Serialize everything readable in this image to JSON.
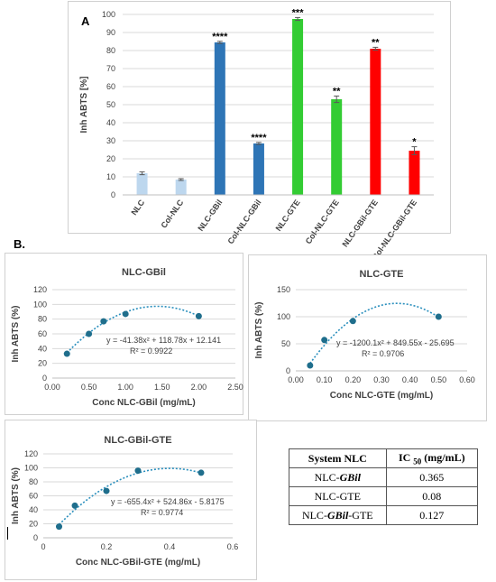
{
  "labels": {
    "panel_a": "A",
    "panel_b": "B."
  },
  "chart_data": [
    {
      "id": "A",
      "type": "bar",
      "ylabel": "Inh ABTS [%]",
      "ylim": [
        0,
        100
      ],
      "yticks": [
        "0",
        "10",
        "20",
        "30",
        "40",
        "50",
        "60",
        "70",
        "80",
        "90",
        "100"
      ],
      "categories": [
        "NLC",
        "Col-NLC",
        "NLC-GBil",
        "Col-NLC-GBil",
        "NLC-GTE",
        "Col-NLC-GTE",
        "NLC-GBil-GTE",
        "Col-NLC-GBil-GTE"
      ],
      "values": [
        12,
        8.5,
        84.5,
        28.5,
        97.5,
        53,
        81,
        24.5
      ],
      "errors": [
        0.8,
        0.5,
        0.6,
        0.6,
        0.8,
        1.8,
        0.8,
        2.2
      ],
      "significance": [
        "",
        "",
        "****",
        "****",
        "***",
        "**",
        "**",
        "*"
      ],
      "colors": [
        "#bdd7ee",
        "#bdd7ee",
        "#2e75b6",
        "#2e75b6",
        "#33cc33",
        "#33cc33",
        "#ff0000",
        "#ff0000"
      ],
      "grid": true
    },
    {
      "id": "NLC-GBil",
      "type": "scatter",
      "title": "NLC-GBil",
      "xlabel": "Conc NLC-GBil (mg/mL)",
      "ylabel": "Inh ABTS (%)",
      "xlim": [
        0,
        2.5
      ],
      "ylim": [
        0,
        120
      ],
      "xticks": [
        "0.00",
        "0.50",
        "1.00",
        "1.50",
        "2.00",
        "2.50"
      ],
      "yticks": [
        "0",
        "20",
        "40",
        "60",
        "80",
        "100",
        "120"
      ],
      "x": [
        0.2,
        0.5,
        0.7,
        1.0,
        2.0
      ],
      "y": [
        33,
        60,
        77,
        87,
        84
      ],
      "trend": {
        "a": -41.38,
        "b": 118.78,
        "c": 12.141
      },
      "equation": "y = -41.38x² + 118.78x + 12.141",
      "r2": "R² = 0.9922",
      "grid": true
    },
    {
      "id": "NLC-GTE",
      "type": "scatter",
      "title": "NLC-GTE",
      "xlabel": "Conc NLC-GTE (mg/mL)",
      "ylabel": "Inh ABTS (%)",
      "xlim": [
        0,
        0.6
      ],
      "ylim": [
        0,
        150
      ],
      "xticks": [
        "0.00",
        "0.10",
        "0.20",
        "0.30",
        "0.40",
        "0.50",
        "0.60"
      ],
      "yticks": [
        "0",
        "50",
        "100",
        "150"
      ],
      "x": [
        0.05,
        0.1,
        0.2,
        0.5
      ],
      "y": [
        10,
        57,
        92,
        100
      ],
      "trend": {
        "a": -1200.1,
        "b": 849.55,
        "c": -25.695
      },
      "equation": "y = -1200.1x² + 849.55x - 25.695",
      "r2": "R² = 0.9706",
      "grid": true
    },
    {
      "id": "NLC-GBil-GTE",
      "type": "scatter",
      "title": "NLC-GBil-GTE",
      "xlabel": "Conc NLC-GBil-GTE (mg/mL)",
      "ylabel": "Inh ABTS (%)",
      "xlim": [
        0,
        0.6
      ],
      "ylim": [
        0,
        120
      ],
      "xticks": [
        "0",
        "0.2",
        "0.4",
        "0.6"
      ],
      "yticks": [
        "0",
        "20",
        "40",
        "60",
        "80",
        "100",
        "120"
      ],
      "x": [
        0.05,
        0.1,
        0.2,
        0.3,
        0.5
      ],
      "y": [
        16,
        46,
        67,
        96,
        93
      ],
      "trend": {
        "a": -655.4,
        "b": 524.86,
        "c": -5.8175
      },
      "equation": "y = -655.4x² + 524.86x - 5.8175",
      "r2": "R² = 0.9774",
      "grid": true
    }
  ],
  "ic50_table": {
    "header_system": "System NLC",
    "header_ic": "IC",
    "header_sub": "50",
    "header_unit": " (mg/mL)",
    "rows": [
      {
        "pre": "NLC-",
        "italic": "GBil",
        "post": "",
        "value": "0.365"
      },
      {
        "pre": "NLC-GTE",
        "italic": "",
        "post": "",
        "value": "0.08"
      },
      {
        "pre": "NLC-",
        "italic": "GBil",
        "post": "-GTE",
        "value": "0.127"
      }
    ]
  }
}
